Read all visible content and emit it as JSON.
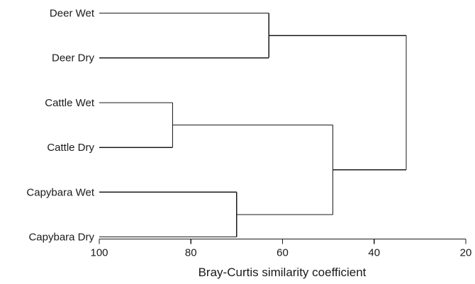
{
  "leaves": [
    "Deer Wet",
    "Deer Dry",
    "Cattle Wet",
    "Cattle Dry",
    "Capybara Wet",
    "Capybara Dry"
  ],
  "merges": [
    {
      "id": "deer",
      "children": [
        "Deer Wet",
        "Deer Dry"
      ],
      "similarity": 63
    },
    {
      "id": "cattle",
      "children": [
        "Cattle Wet",
        "Cattle Dry"
      ],
      "similarity": 84
    },
    {
      "id": "capybara",
      "children": [
        "Capybara Wet",
        "Capybara Dry"
      ],
      "similarity": 70
    },
    {
      "id": "cattle_capybara",
      "children": [
        "cattle",
        "capybara"
      ],
      "similarity": 49
    },
    {
      "id": "root",
      "children": [
        "deer",
        "cattle_capybara"
      ],
      "similarity": 33
    }
  ],
  "axis": {
    "title": "Bray-Curtis similarity coefficient",
    "range": [
      100,
      20
    ],
    "ticks": [
      "100",
      "80",
      "60",
      "40",
      "20"
    ]
  }
}
